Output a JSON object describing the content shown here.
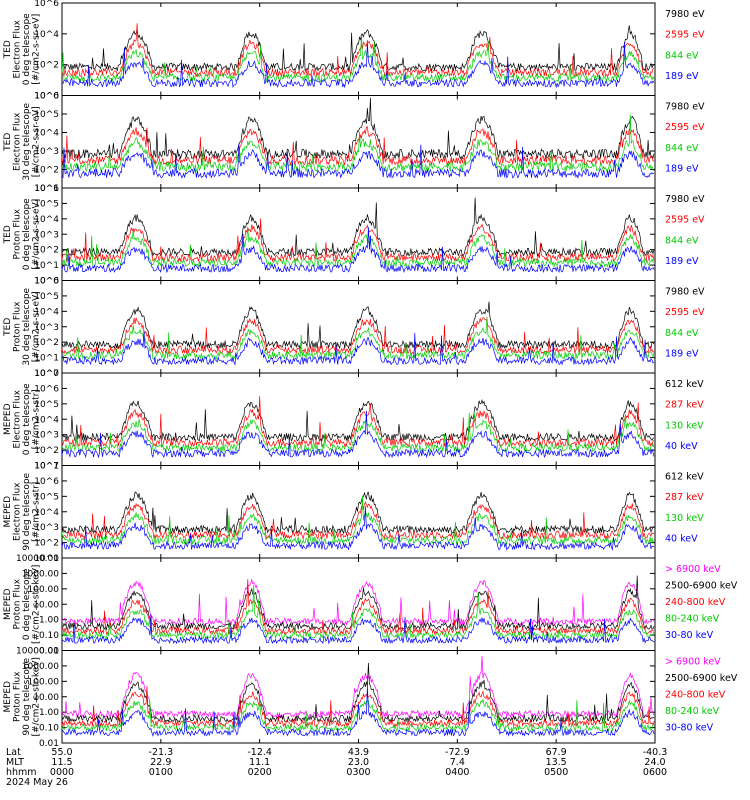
{
  "chart_data": {
    "type": "line",
    "date_label": "2024 May 26",
    "row_labels": [
      "Lat",
      "MLT",
      "hhmm"
    ],
    "time_ticks": [
      {
        "t": 0,
        "lat": "55.0",
        "mlt": "11.5",
        "hhmm": "0000"
      },
      {
        "t": 60,
        "lat": "-21.3",
        "mlt": "22.9",
        "hhmm": "0100"
      },
      {
        "t": 120,
        "lat": "-12.4",
        "mlt": "11.1",
        "hhmm": "0200"
      },
      {
        "t": 180,
        "lat": "43.9",
        "mlt": "23.0",
        "hhmm": "0300"
      },
      {
        "t": 240,
        "lat": "-72.9",
        "mlt": "7.4",
        "hhmm": "0400"
      },
      {
        "t": 300,
        "lat": "67.9",
        "mlt": "13.5",
        "hhmm": "0500"
      },
      {
        "t": 360,
        "lat": "-40.3",
        "mlt": "24.0",
        "hhmm": "0600"
      }
    ],
    "xlim": [
      0,
      360
    ],
    "passes": [
      {
        "center": 45,
        "width": 10
      },
      {
        "center": 115,
        "width": 9
      },
      {
        "center": 185,
        "width": 10
      },
      {
        "center": 255,
        "width": 10
      },
      {
        "center": 345,
        "width": 8
      }
    ],
    "panels": [
      {
        "ylabel": [
          "TED",
          "Electron Flux",
          "0 deg telescope",
          "[#/cm2-s-sr-eV]"
        ],
        "scale": "log",
        "ylim_exp": [
          0,
          6
        ],
        "ticks": [
          "10^0",
          "10^2",
          "10^4",
          "10^6"
        ],
        "series": [
          {
            "name": "7980 eV",
            "color": "#000000"
          },
          {
            "name": "2595 eV",
            "color": "#ff0000"
          },
          {
            "name": "844 eV",
            "color": "#00cc00"
          },
          {
            "name": "189 eV",
            "color": "#0000ff"
          }
        ]
      },
      {
        "ylabel": [
          "TED",
          "Electron Flux",
          "30 deg telescope",
          "[#/cm2-s-sr-eV]"
        ],
        "scale": "log",
        "ylim_exp": [
          1,
          6
        ],
        "ticks": [
          "10^1",
          "10^2",
          "10^3",
          "10^4",
          "10^5",
          "10^6"
        ],
        "series": [
          {
            "name": "7980 eV",
            "color": "#000000"
          },
          {
            "name": "2595 eV",
            "color": "#ff0000"
          },
          {
            "name": "844 eV",
            "color": "#00cc00"
          },
          {
            "name": "189 eV",
            "color": "#0000ff"
          }
        ]
      },
      {
        "ylabel": [
          "TED",
          "Proton Flux",
          "0 deg telescope",
          "[#/cm2-s-sr-eV]"
        ],
        "scale": "log",
        "ylim_exp": [
          0,
          6
        ],
        "ticks": [
          "10^0",
          "10^1",
          "10^2",
          "10^3",
          "10^4",
          "10^5",
          "10^6"
        ],
        "series": [
          {
            "name": "7980 eV",
            "color": "#000000"
          },
          {
            "name": "2595 eV",
            "color": "#ff0000"
          },
          {
            "name": "844 eV",
            "color": "#00cc00"
          },
          {
            "name": "189 eV",
            "color": "#0000ff"
          }
        ]
      },
      {
        "ylabel": [
          "TED",
          "Proton Flux",
          "30 deg telescope",
          "[#/cm2-s-sr-eV]"
        ],
        "scale": "log",
        "ylim_exp": [
          0,
          6
        ],
        "ticks": [
          "10^0",
          "10^1",
          "10^2",
          "10^3",
          "10^4",
          "10^5",
          "10^6"
        ],
        "series": [
          {
            "name": "7980 eV",
            "color": "#000000"
          },
          {
            "name": "2595 eV",
            "color": "#ff0000"
          },
          {
            "name": "844 eV",
            "color": "#00cc00"
          },
          {
            "name": "189 eV",
            "color": "#0000ff"
          }
        ]
      },
      {
        "ylabel": [
          "MEPED",
          "Electron Flux",
          "0 deg telescope",
          "[#/cm2-s-str]"
        ],
        "scale": "log",
        "ylim_exp": [
          1,
          7
        ],
        "ticks": [
          "10^1",
          "10^2",
          "10^3",
          "10^4",
          "10^5",
          "10^6",
          "10^7"
        ],
        "series": [
          {
            "name": "612 keV",
            "color": "#000000"
          },
          {
            "name": "287 keV",
            "color": "#ff0000"
          },
          {
            "name": "130 keV",
            "color": "#00cc00"
          },
          {
            "name": "40 keV",
            "color": "#0000ff"
          }
        ]
      },
      {
        "ylabel": [
          "MEPED",
          "Electron Flux",
          "90 deg telescope",
          "[#/cm2-s-str]"
        ],
        "scale": "log",
        "ylim_exp": [
          1,
          7
        ],
        "ticks": [
          "10^1",
          "10^2",
          "10^3",
          "10^4",
          "10^5",
          "10^6",
          "10^7"
        ],
        "series": [
          {
            "name": "612 keV",
            "color": "#000000"
          },
          {
            "name": "287 keV",
            "color": "#ff0000"
          },
          {
            "name": "130 keV",
            "color": "#00cc00"
          },
          {
            "name": "40 keV",
            "color": "#0000ff"
          }
        ]
      },
      {
        "ylabel": [
          "MEPED",
          "Proton Flux",
          "0 deg telescope",
          "[#/cm2-s-str-keV]"
        ],
        "scale": "log",
        "ylim_exp": [
          -2,
          5
        ],
        "ticks": [
          "0.01",
          "0.10",
          "1.00",
          "10.00",
          "100.00",
          "1000.00",
          "10000.00"
        ],
        "series": [
          {
            "name": "> 6900 keV",
            "color": "#ff00ff"
          },
          {
            "name": "2500-6900 keV",
            "color": "#000000"
          },
          {
            "name": "240-800 keV",
            "color": "#ff0000"
          },
          {
            "name": "80-240 keV",
            "color": "#00cc00"
          },
          {
            "name": "30-80 keV",
            "color": "#0000ff"
          }
        ]
      },
      {
        "ylabel": [
          "MEPED",
          "Proton Flux",
          "90 deg telescope",
          "[#/cm2-s-str-keV]"
        ],
        "scale": "log",
        "ylim_exp": [
          -2,
          5
        ],
        "ticks": [
          "0.01",
          "0.10",
          "1.00",
          "10.00",
          "100.00",
          "1000.00",
          "10000.00"
        ],
        "series": [
          {
            "name": "> 6900 keV",
            "color": "#ff00ff"
          },
          {
            "name": "2500-6900 keV",
            "color": "#000000"
          },
          {
            "name": "240-800 keV",
            "color": "#ff0000"
          },
          {
            "name": "80-240 keV",
            "color": "#00cc00"
          },
          {
            "name": "30-80 keV",
            "color": "#0000ff"
          }
        ]
      }
    ]
  }
}
